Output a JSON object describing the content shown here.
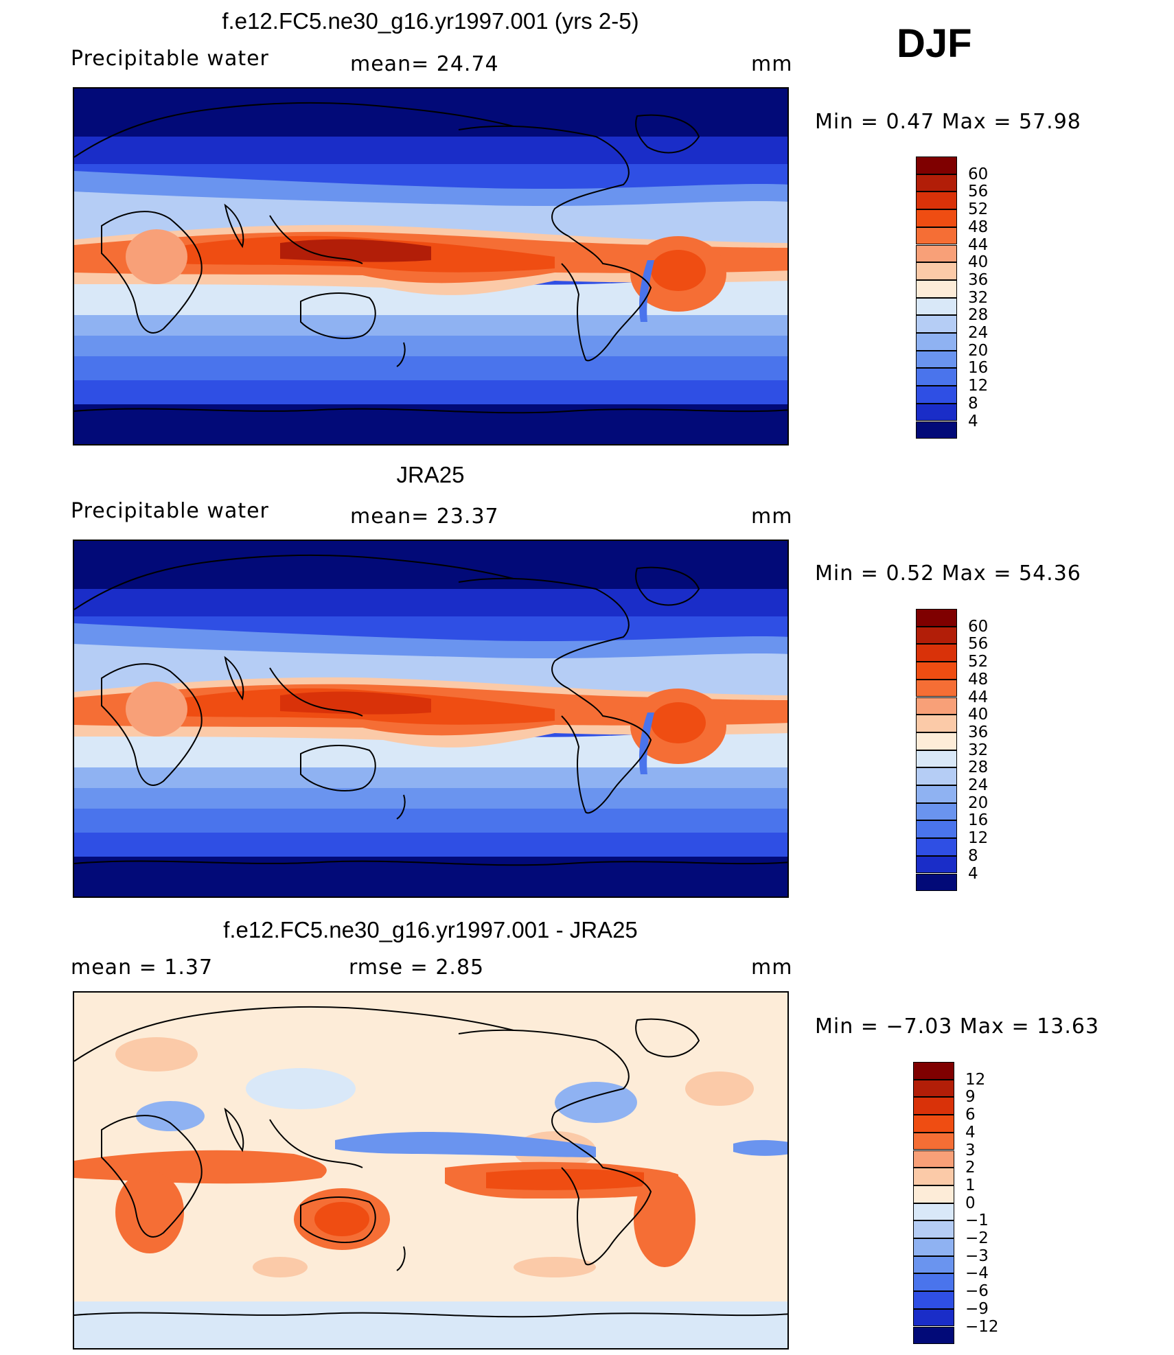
{
  "season": "DJF",
  "panels": [
    {
      "id": "model",
      "title": "f.e12.FC5.ne30_g16.yr1997.001 (yrs 2-5)",
      "left_label": "Precipitable  water",
      "mean_text": "mean=   24.74",
      "units": "mm",
      "minmax_text": "Min  =     0.47  Max  =    57.98",
      "scheme": "abs"
    },
    {
      "id": "obs",
      "title": "JRA25",
      "left_label": "Precipitable  water",
      "mean_text": "mean=   23.37",
      "units": "mm",
      "minmax_text": "Min  =     0.52  Max  =    54.36",
      "scheme": "abs"
    },
    {
      "id": "diff",
      "title": "f.e12.FC5.ne30_g16.yr1997.001 - JRA25",
      "left_label": "mean  =     1.37",
      "mean_text": "rmse  =     2.85",
      "units": "mm",
      "minmax_text": "Min  =   −7.03  Max  =    13.63",
      "scheme": "diff"
    }
  ],
  "chart_data": [
    {
      "type": "heatmap",
      "title": "f.e12.FC5.ne30_g16.yr1997.001 (yrs 2-5)",
      "variable": "Precipitable water",
      "units": "mm",
      "mean": 24.74,
      "min": 0.47,
      "max": 57.98,
      "levels": [
        "60",
        "56",
        "52",
        "48",
        "44",
        "40",
        "36",
        "32",
        "28",
        "24",
        "20",
        "16",
        "12",
        "8",
        "4"
      ],
      "colors": [
        "#7f0000",
        "#b21e08",
        "#d93209",
        "#ef4d12",
        "#f56e35",
        "#f8a078",
        "#fbcaa8",
        "#fdecd8",
        "#d9e8f8",
        "#b5cdf5",
        "#8fb2f2",
        "#6a94ef",
        "#4a74ec",
        "#2f4fe4",
        "#1a2dc8",
        "#020a78"
      ]
    },
    {
      "type": "heatmap",
      "title": "JRA25",
      "variable": "Precipitable water",
      "units": "mm",
      "mean": 23.37,
      "min": 0.52,
      "max": 54.36,
      "levels": [
        "60",
        "56",
        "52",
        "48",
        "44",
        "40",
        "36",
        "32",
        "28",
        "24",
        "20",
        "16",
        "12",
        "8",
        "4"
      ],
      "colors": [
        "#7f0000",
        "#b21e08",
        "#d93209",
        "#ef4d12",
        "#f56e35",
        "#f8a078",
        "#fbcaa8",
        "#fdecd8",
        "#d9e8f8",
        "#b5cdf5",
        "#8fb2f2",
        "#6a94ef",
        "#4a74ec",
        "#2f4fe4",
        "#1a2dc8",
        "#020a78"
      ]
    },
    {
      "type": "heatmap",
      "title": "f.e12.FC5.ne30_g16.yr1997.001 - JRA25",
      "units": "mm",
      "mean": 1.37,
      "rmse": 2.85,
      "min": -7.03,
      "max": 13.63,
      "levels": [
        "12",
        "9",
        "6",
        "4",
        "3",
        "2",
        "1",
        "0",
        "−1",
        "−2",
        "−3",
        "−4",
        "−6",
        "−9",
        "−12"
      ],
      "colors": [
        "#7f0000",
        "#b21e08",
        "#d93209",
        "#ef4d12",
        "#f56e35",
        "#f8a078",
        "#fbcaa8",
        "#fdecd8",
        "#d9e8f8",
        "#b5cdf5",
        "#8fb2f2",
        "#6a94ef",
        "#4a74ec",
        "#2f4fe4",
        "#1a2dc8",
        "#020a78"
      ]
    }
  ]
}
